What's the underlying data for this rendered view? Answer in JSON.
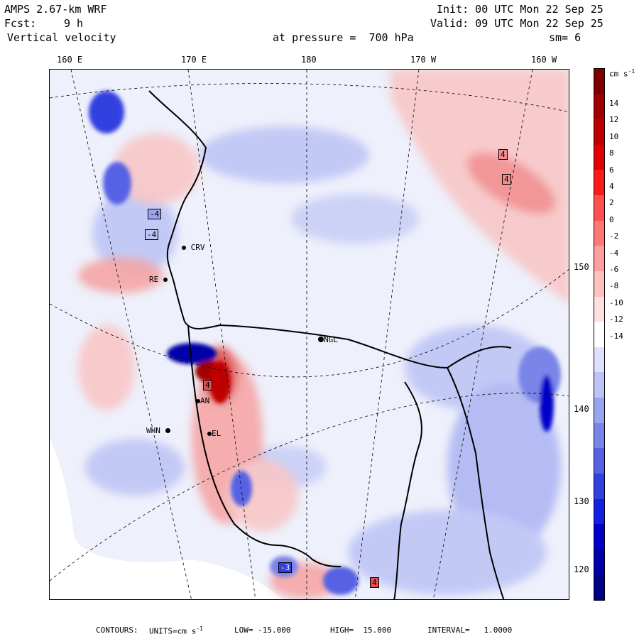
{
  "header": {
    "model": "AMPS 2.67-km WRF",
    "init": "Init: 00 UTC Mon 22 Sep 25",
    "fcst_label": "Fcst:",
    "fcst_value": "9 h",
    "valid": "Valid: 09 UTC Mon 22 Sep 25",
    "field": "Vertical velocity",
    "pressure": "at pressure =  700 hPa",
    "smoothing": "sm= 6"
  },
  "longitudes": [
    "160 E",
    "170 E",
    "180",
    "170 W",
    "160 W"
  ],
  "right_labels": [
    "150 W",
    "140 W",
    "130 W",
    "120 W"
  ],
  "colorbar": {
    "units": "cm s",
    "units_exp": "-1",
    "labels": [
      "14",
      "12",
      "10",
      "8",
      "6",
      "4",
      "2",
      "0",
      "-2",
      "-4",
      "-6",
      "-8",
      "-10",
      "-12",
      "-14"
    ],
    "colors": [
      "#800000",
      "#a00000",
      "#c00000",
      "#e00000",
      "#ff1a1a",
      "#ff5050",
      "#ff7878",
      "#ff9e9e",
      "#ffc0c0",
      "#ffe0e0",
      "#ffffff",
      "#dde1fb",
      "#bcc3f5",
      "#9aa4ee",
      "#7a85e8",
      "#5662e3",
      "#3340e0",
      "#1020e0",
      "#0000c8",
      "#0000a8",
      "#000088"
    ]
  },
  "stations": [
    {
      "code": "CRV"
    },
    {
      "code": "RE"
    },
    {
      "code": "NGL"
    },
    {
      "code": "WHN"
    },
    {
      "code": "EL"
    },
    {
      "code": "AN"
    }
  ],
  "boxes": [
    "4",
    "4",
    "-4",
    "-4",
    "-3",
    "4",
    "4"
  ],
  "footer": {
    "contours_label": "CONTOURS:",
    "units": "UNITS=cm s",
    "units_exp": "-1",
    "low": "LOW= -15.000",
    "high": "HIGH=  15.000",
    "interval": "INTERVAL=   1.0000"
  },
  "colors": {
    "land_outline": "#000000",
    "positive": "#f5a5a5",
    "negative": "#9ba5ee",
    "background": "#eef0fb"
  }
}
